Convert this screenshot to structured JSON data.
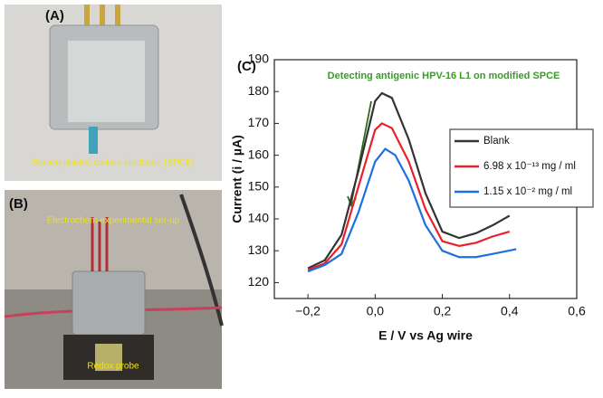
{
  "panels": {
    "a": {
      "label": "(A)",
      "caption": "Screen-printed carbon electrode (SPCE)"
    },
    "b": {
      "label": "(B)",
      "caption": "Electrochem experimental set-up",
      "caption2": "Redox probe"
    },
    "c": {
      "label": "(C)"
    }
  },
  "chart_data": {
    "type": "line",
    "annotation": "Detecting antigenic HPV-16 L1 on modified SPCE",
    "x_label": "E / V vs Ag wire",
    "y_label": "Current (i / µA)",
    "xlim": [
      -0.3,
      0.6
    ],
    "ylim": [
      115,
      190
    ],
    "xticks": [
      {
        "value": -0.2,
        "label": "−0,2"
      },
      {
        "value": 0,
        "label": "0,0"
      },
      {
        "value": 0.2,
        "label": "0,2"
      },
      {
        "value": 0.4,
        "label": "0,4"
      },
      {
        "value": 0.6,
        "label": "0,6"
      }
    ],
    "yticks": [
      120,
      130,
      140,
      150,
      160,
      170,
      180,
      190
    ],
    "series": [
      {
        "name": "Blank",
        "color": "#333333",
        "x": [
          -0.2,
          -0.15,
          -0.1,
          -0.05,
          0,
          0.02,
          0.05,
          0.1,
          0.15,
          0.2,
          0.25,
          0.3,
          0.35,
          0.4
        ],
        "values": [
          124.5,
          127,
          135,
          155,
          177,
          179.5,
          178,
          165,
          148,
          136,
          134,
          135.5,
          138,
          141
        ]
      },
      {
        "name": "6.98 x 10⁻¹³ mg / ml",
        "color": "#e8202a",
        "x": [
          -0.2,
          -0.15,
          -0.1,
          -0.05,
          0,
          0.02,
          0.05,
          0.1,
          0.15,
          0.2,
          0.25,
          0.3,
          0.35,
          0.4
        ],
        "values": [
          124,
          126,
          132,
          150,
          168,
          170,
          168.5,
          158,
          143,
          133,
          131.5,
          132.5,
          134.5,
          136
        ]
      },
      {
        "name": "1.15 x 10⁻² mg / ml",
        "color": "#1f6fe0",
        "x": [
          -0.2,
          -0.15,
          -0.1,
          -0.05,
          0,
          0.03,
          0.06,
          0.1,
          0.15,
          0.2,
          0.25,
          0.3,
          0.35,
          0.42
        ],
        "values": [
          123.5,
          125.5,
          129,
          142,
          158,
          162,
          160,
          152,
          138,
          130,
          128,
          128,
          129,
          130.5
        ]
      }
    ]
  }
}
